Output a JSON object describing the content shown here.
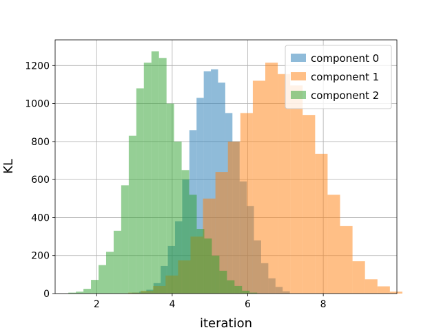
{
  "chart_data": {
    "type": "histogram",
    "title": "",
    "xlabel": "iteration",
    "ylabel": "KL",
    "xlim": [
      0.9,
      9.95
    ],
    "ylim": [
      0,
      1335
    ],
    "xticks": [
      2,
      4,
      6,
      8
    ],
    "yticks": [
      0,
      200,
      400,
      600,
      800,
      1000,
      1200
    ],
    "grid": true,
    "legend_position": "top-right",
    "bar_alpha": 0.5,
    "series": [
      {
        "name": "component 0",
        "color": "#1f77b4",
        "bin_width": 0.19,
        "bins": [
          [
            3.03,
            5
          ],
          [
            3.22,
            10
          ],
          [
            3.41,
            20
          ],
          [
            3.6,
            55
          ],
          [
            3.79,
            145
          ],
          [
            3.98,
            250
          ],
          [
            4.17,
            380
          ],
          [
            4.36,
            600
          ],
          [
            4.55,
            860
          ],
          [
            4.74,
            1030
          ],
          [
            4.93,
            1170
          ],
          [
            5.12,
            1180
          ],
          [
            5.31,
            1110
          ],
          [
            5.5,
            950
          ],
          [
            5.69,
            800
          ],
          [
            5.88,
            590
          ],
          [
            6.07,
            460
          ],
          [
            6.26,
            280
          ],
          [
            6.45,
            160
          ],
          [
            6.64,
            80
          ],
          [
            6.83,
            35
          ],
          [
            7.02,
            12
          ]
        ]
      },
      {
        "name": "component 1",
        "color": "#ff7f0e",
        "bin_width": 0.33,
        "bins": [
          [
            3.0,
            5
          ],
          [
            3.33,
            15
          ],
          [
            3.66,
            40
          ],
          [
            3.99,
            95
          ],
          [
            4.32,
            175
          ],
          [
            4.65,
            300
          ],
          [
            4.98,
            500
          ],
          [
            5.31,
            640
          ],
          [
            5.64,
            800
          ],
          [
            5.97,
            950
          ],
          [
            6.3,
            1120
          ],
          [
            6.63,
            1215
          ],
          [
            6.96,
            1155
          ],
          [
            7.29,
            1095
          ],
          [
            7.62,
            940
          ],
          [
            7.95,
            735
          ],
          [
            8.28,
            520
          ],
          [
            8.61,
            355
          ],
          [
            8.94,
            170
          ],
          [
            9.27,
            75
          ],
          [
            9.6,
            38
          ],
          [
            9.93,
            10
          ]
        ]
      },
      {
        "name": "component 2",
        "color": "#2ca02c",
        "bin_width": 0.2,
        "bins": [
          [
            1.35,
            5
          ],
          [
            1.55,
            10
          ],
          [
            1.75,
            25
          ],
          [
            1.95,
            72
          ],
          [
            2.15,
            150
          ],
          [
            2.35,
            220
          ],
          [
            2.55,
            330
          ],
          [
            2.75,
            570
          ],
          [
            2.95,
            830
          ],
          [
            3.15,
            1080
          ],
          [
            3.35,
            1215
          ],
          [
            3.55,
            1275
          ],
          [
            3.75,
            1240
          ],
          [
            3.95,
            1000
          ],
          [
            4.15,
            800
          ],
          [
            4.35,
            650
          ],
          [
            4.55,
            520
          ],
          [
            4.75,
            340
          ],
          [
            4.95,
            290
          ],
          [
            5.15,
            200
          ],
          [
            5.35,
            120
          ],
          [
            5.55,
            70
          ],
          [
            5.75,
            40
          ],
          [
            5.95,
            15
          ],
          [
            6.15,
            5
          ]
        ]
      }
    ]
  }
}
